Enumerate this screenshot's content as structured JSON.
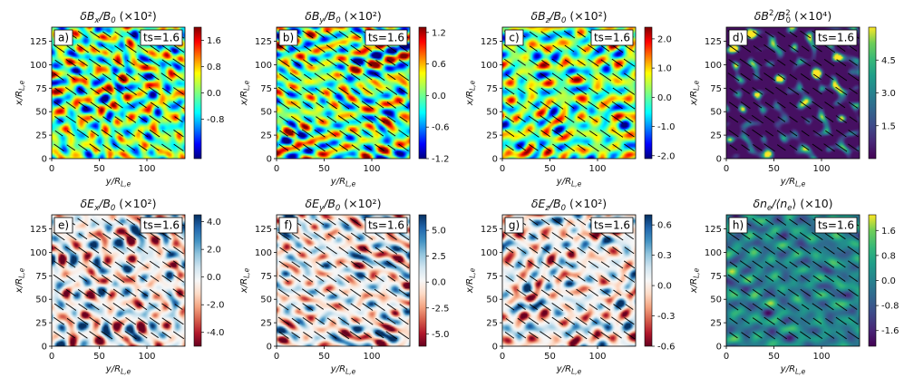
{
  "chart_data": [
    {
      "type": "heatmap",
      "panel_label": "a)",
      "timestamp": "ts=1.6",
      "title": "δBx/B0 (×10²)",
      "title_main": "δB",
      "title_sub": "x",
      "title_den": "/B",
      "title_den_sub": "0",
      "title_scale": " (×10²)",
      "xlabel": "y/R_L,e",
      "ylabel": "x/R_L,e",
      "xticks": [
        "0",
        "50",
        "100"
      ],
      "yticks": [
        "0",
        "25",
        "50",
        "75",
        "100",
        "125"
      ],
      "xlim": [
        0,
        140
      ],
      "ylim": [
        0,
        140
      ],
      "colormap": "jet",
      "colorbar_range": [
        -2.0,
        2.0
      ],
      "colorbar_ticks": [
        "1.6",
        "0.8",
        "0.0",
        "-0.8"
      ],
      "colorbar_tick_values": [
        1.6,
        0.8,
        0.0,
        -0.8
      ],
      "feature_scale": 6
    },
    {
      "type": "heatmap",
      "panel_label": "b)",
      "timestamp": "ts=1.6",
      "title": "δBy/B0 (×10²)",
      "title_main": "δB",
      "title_sub": "y",
      "title_den": "/B",
      "title_den_sub": "0",
      "title_scale": " (×10²)",
      "xlabel": "y/R_L,e",
      "ylabel": "x/R_L,e",
      "xticks": [
        "0",
        "50",
        "100"
      ],
      "yticks": [
        "0",
        "25",
        "50",
        "75",
        "100",
        "125"
      ],
      "xlim": [
        0,
        140
      ],
      "ylim": [
        0,
        140
      ],
      "colormap": "jet",
      "colorbar_range": [
        -1.2,
        1.3
      ],
      "colorbar_ticks": [
        "1.2",
        "0.6",
        "0.0",
        "-0.6",
        "-1.2"
      ],
      "colorbar_tick_values": [
        1.2,
        0.6,
        0.0,
        -0.6,
        -1.2
      ],
      "feature_scale": 6
    },
    {
      "type": "heatmap",
      "panel_label": "c)",
      "timestamp": "ts=1.6",
      "title": "δBz/B0 (×10²)",
      "title_main": "δB",
      "title_sub": "z",
      "title_den": "/B",
      "title_den_sub": "0",
      "title_scale": " (×10²)",
      "xlabel": "y/R_L,e",
      "ylabel": "x/R_L,e",
      "xticks": [
        "0",
        "50",
        "100"
      ],
      "yticks": [
        "0",
        "25",
        "50",
        "75",
        "100",
        "125"
      ],
      "xlim": [
        0,
        140
      ],
      "ylim": [
        0,
        140
      ],
      "colormap": "jet",
      "colorbar_range": [
        -2.1,
        2.4
      ],
      "colorbar_ticks": [
        "2.0",
        "1.0",
        "0.0",
        "-1.0",
        "-2.0"
      ],
      "colorbar_tick_values": [
        2.0,
        1.0,
        0.0,
        -1.0,
        -2.0
      ],
      "feature_scale": 6
    },
    {
      "type": "heatmap",
      "panel_label": "d)",
      "timestamp": "ts=1.6",
      "title": "δB²/B0² (×10⁴)",
      "title_main": "δB",
      "title_sub": "",
      "title_sup": "2",
      "title_den": "/B",
      "title_den_sub": "0",
      "title_den_sup": "2",
      "title_scale": " (×10⁴)",
      "xlabel": "y/R_L,e",
      "ylabel": "x/R_L,e",
      "xticks": [
        "0",
        "50",
        "100"
      ],
      "yticks": [
        "0",
        "25",
        "50",
        "75",
        "100",
        "125"
      ],
      "xlim": [
        0,
        140
      ],
      "ylim": [
        0,
        140
      ],
      "colormap": "viridis",
      "colorbar_range": [
        0.0,
        6.0
      ],
      "colorbar_ticks": [
        "4.5",
        "3.0",
        "1.5"
      ],
      "colorbar_tick_values": [
        4.5,
        3.0,
        1.5
      ],
      "feature_scale": 4
    },
    {
      "type": "heatmap",
      "panel_label": "e)",
      "timestamp": "ts=1.6",
      "title": "δEx/B0 (×10²)",
      "title_main": "δE",
      "title_sub": "x",
      "title_den": "/B",
      "title_den_sub": "0",
      "title_scale": " (×10²)",
      "xlabel": "y/R_L,e",
      "ylabel": "x/R_L,e",
      "xticks": [
        "0",
        "50",
        "100"
      ],
      "yticks": [
        "0",
        "25",
        "50",
        "75",
        "100",
        "125"
      ],
      "xlim": [
        0,
        140
      ],
      "ylim": [
        0,
        140
      ],
      "colormap": "RdBu",
      "colorbar_range": [
        -5.0,
        4.5
      ],
      "colorbar_ticks": [
        "4.0",
        "2.0",
        "0.0",
        "-2.0",
        "-4.0"
      ],
      "colorbar_tick_values": [
        4.0,
        2.0,
        0.0,
        -2.0,
        -4.0
      ],
      "feature_scale": 5
    },
    {
      "type": "heatmap",
      "panel_label": "f)",
      "timestamp": "ts=1.6",
      "title": "δEy/B0 (×10²)",
      "title_main": "δE",
      "title_sub": "y",
      "title_den": "/B",
      "title_den_sub": "0",
      "title_scale": " (×10²)",
      "xlabel": "y/R_L,e",
      "ylabel": "x/R_L,e",
      "xticks": [
        "0",
        "50",
        "100"
      ],
      "yticks": [
        "0",
        "25",
        "50",
        "75",
        "100",
        "125"
      ],
      "xlim": [
        0,
        140
      ],
      "ylim": [
        0,
        140
      ],
      "colormap": "RdBu",
      "colorbar_range": [
        -6.2,
        6.5
      ],
      "colorbar_ticks": [
        "5.0",
        "2.5",
        "0.0",
        "-2.5",
        "-5.0"
      ],
      "colorbar_tick_values": [
        5.0,
        2.5,
        0.0,
        -2.5,
        -5.0
      ],
      "feature_scale": 5
    },
    {
      "type": "heatmap",
      "panel_label": "g)",
      "timestamp": "ts=1.6",
      "title": "δEz/B0 (×10²)",
      "title_main": "δE",
      "title_sub": "z",
      "title_den": "/B",
      "title_den_sub": "0",
      "title_scale": " (×10²)",
      "xlabel": "y/R_L,e",
      "ylabel": "x/R_L,e",
      "xticks": [
        "0",
        "50",
        "100"
      ],
      "yticks": [
        "0",
        "25",
        "50",
        "75",
        "100",
        "125"
      ],
      "xlim": [
        0,
        140
      ],
      "ylim": [
        0,
        140
      ],
      "colormap": "RdBu",
      "colorbar_range": [
        -0.6,
        0.7
      ],
      "colorbar_ticks": [
        "0.6",
        "0.3",
        "0.0",
        "-0.3",
        "-0.6"
      ],
      "colorbar_tick_values": [
        0.6,
        0.3,
        0.0,
        -0.3,
        -0.6
      ],
      "feature_scale": 5
    },
    {
      "type": "heatmap",
      "panel_label": "h)",
      "timestamp": "ts=1.6",
      "title": "δne/⟨ne⟩ (×10)",
      "title_main": "δn",
      "title_sub": "e",
      "title_den": "/⟨n",
      "title_den_sub": "e",
      "title_den_close": "⟩",
      "title_scale": " (×10)",
      "xlabel": "y/R_L,e",
      "ylabel": "x/R_L,e",
      "xticks": [
        "0",
        "50",
        "100"
      ],
      "yticks": [
        "0",
        "25",
        "50",
        "75",
        "100",
        "125"
      ],
      "xlim": [
        0,
        140
      ],
      "ylim": [
        0,
        140
      ],
      "colormap": "viridis",
      "colorbar_range": [
        -2.1,
        2.1
      ],
      "colorbar_ticks": [
        "1.6",
        "0.8",
        "0.0",
        "-0.8",
        "-1.6"
      ],
      "colorbar_tick_values": [
        1.6,
        0.8,
        0.0,
        -0.8,
        -1.6
      ],
      "feature_scale": 5
    }
  ]
}
